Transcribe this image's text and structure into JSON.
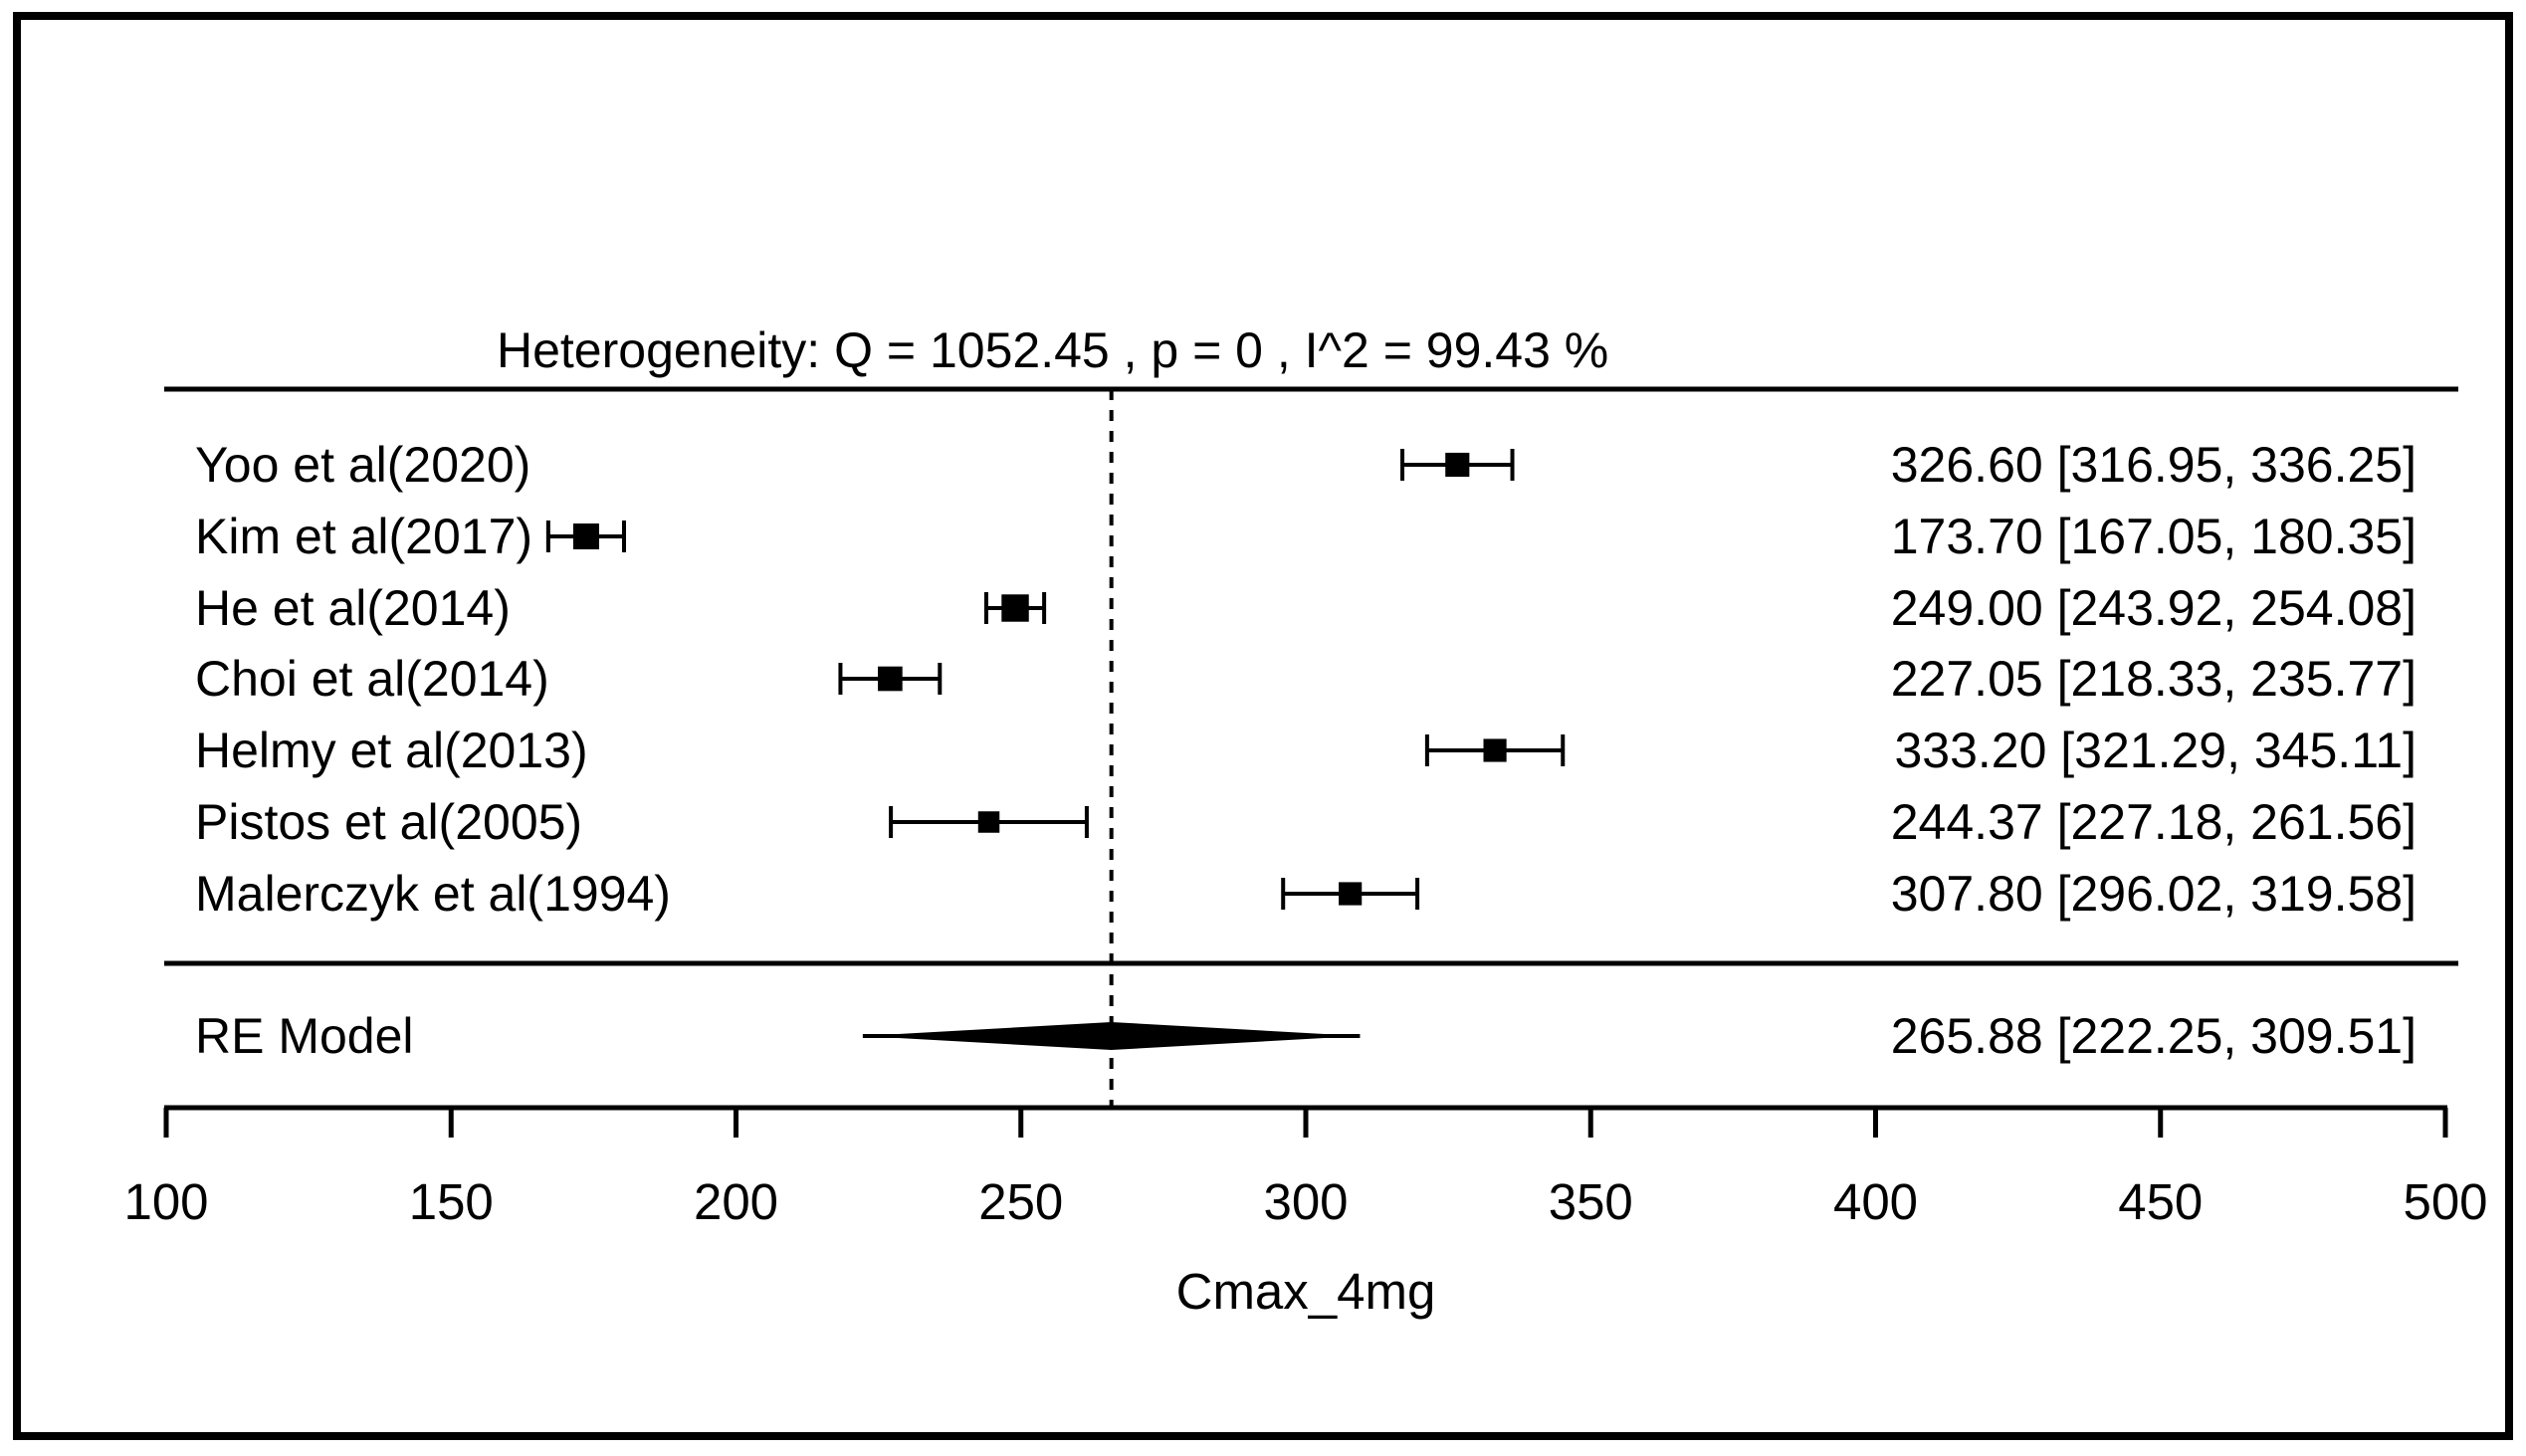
{
  "colors": {
    "foreground": "#000000",
    "background": "#ffffff"
  },
  "chart_data": {
    "type": "forest",
    "xlabel": "Cmax_4mg",
    "heterogeneity": {
      "Q": 1052.45,
      "p": 0,
      "I2_percent": 99.43,
      "text": "Heterogeneity: Q = 1052.45 , p = 0 , I^2 = 99.43 %"
    },
    "x_axis": {
      "min": 100,
      "max": 500,
      "ticks": [
        100,
        150,
        200,
        250,
        300,
        350,
        400,
        450,
        500
      ]
    },
    "studies": [
      {
        "label": "Yoo et al(2020)",
        "mean": 326.6,
        "ci_lower": 316.95,
        "ci_upper": 336.25,
        "value_text": "326.60 [316.95, 336.25]"
      },
      {
        "label": "Kim et al(2017)",
        "mean": 173.7,
        "ci_lower": 167.05,
        "ci_upper": 180.35,
        "value_text": "173.70 [167.05, 180.35]"
      },
      {
        "label": "He et al(2014)",
        "mean": 249.0,
        "ci_lower": 243.92,
        "ci_upper": 254.08,
        "value_text": "249.00 [243.92, 254.08]"
      },
      {
        "label": "Choi et al(2014)",
        "mean": 227.05,
        "ci_lower": 218.33,
        "ci_upper": 235.77,
        "value_text": "227.05 [218.33, 235.77]"
      },
      {
        "label": "Helmy et al(2013)",
        "mean": 333.2,
        "ci_lower": 321.29,
        "ci_upper": 345.11,
        "value_text": "333.20 [321.29, 345.11]"
      },
      {
        "label": "Pistos et al(2005)",
        "mean": 244.37,
        "ci_lower": 227.18,
        "ci_upper": 261.56,
        "value_text": "244.37 [227.18, 261.56]"
      },
      {
        "label": "Malerczyk et al(1994)",
        "mean": 307.8,
        "ci_lower": 296.02,
        "ci_upper": 319.58,
        "value_text": "307.80 [296.02, 319.58]"
      }
    ],
    "summary": {
      "label": "RE Model",
      "mean": 265.88,
      "ci_lower": 222.25,
      "ci_upper": 309.51,
      "value_text": "265.88 [222.25, 309.51]"
    }
  }
}
